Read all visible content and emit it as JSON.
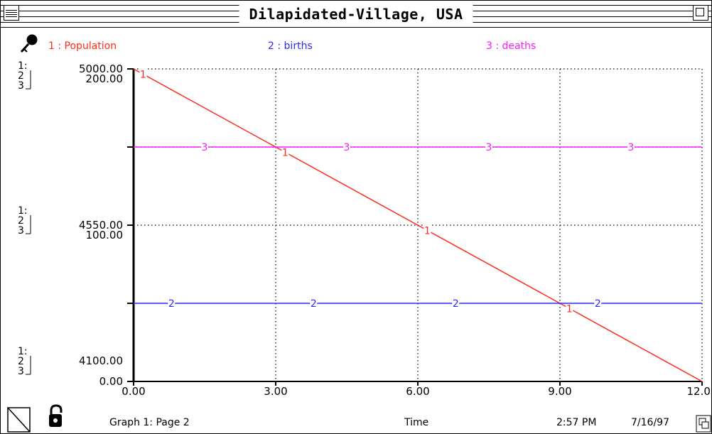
{
  "window": {
    "title": "Dilapidated-Village, USA"
  },
  "legend": [
    {
      "num": "1",
      "label": "Population",
      "color": "#ff2a1a"
    },
    {
      "num": "2",
      "label": "births",
      "color": "#2a2aff"
    },
    {
      "num": "3",
      "label": "deaths",
      "color": "#ff1aff"
    }
  ],
  "footer": {
    "page_label": "Graph 1: Page 2",
    "x_axis_label": "Time",
    "time": "2:57 PM",
    "date": "7/16/97"
  },
  "chart_data": {
    "type": "line",
    "title": "",
    "xlabel": "Time",
    "x_range": [
      0,
      12
    ],
    "x_ticks": [
      "0.00",
      "3.00",
      "6.00",
      "9.00",
      "12.00"
    ],
    "grid": true,
    "axes": [
      {
        "series": "1",
        "range": [
          4100,
          5000
        ],
        "tick_labels": [
          "5000.00",
          "4550.00",
          "4100.00"
        ]
      },
      {
        "series": "2,3",
        "range": [
          0,
          200
        ],
        "tick_labels": [
          "200.00",
          "100.00",
          "0.00"
        ]
      }
    ],
    "series": [
      {
        "name": "Population",
        "id": "1",
        "axis": 0,
        "color": "#ff2a1a",
        "x": [
          0,
          3,
          6,
          9,
          12
        ],
        "y": [
          5000,
          4775,
          4550,
          4325,
          4100
        ],
        "marker_x": [
          0.2,
          3.2,
          6.2,
          9.2
        ]
      },
      {
        "name": "births",
        "id": "2",
        "axis": 1,
        "color": "#2a2aff",
        "x": [
          0,
          12
        ],
        "y": [
          50,
          50
        ],
        "marker_x": [
          0.8,
          3.8,
          6.8,
          9.8
        ]
      },
      {
        "name": "deaths",
        "id": "3",
        "axis": 1,
        "color": "#ff1aff",
        "x": [
          0,
          12
        ],
        "y": [
          150,
          150
        ],
        "marker_x": [
          1.5,
          4.5,
          7.5,
          10.5
        ]
      }
    ]
  }
}
